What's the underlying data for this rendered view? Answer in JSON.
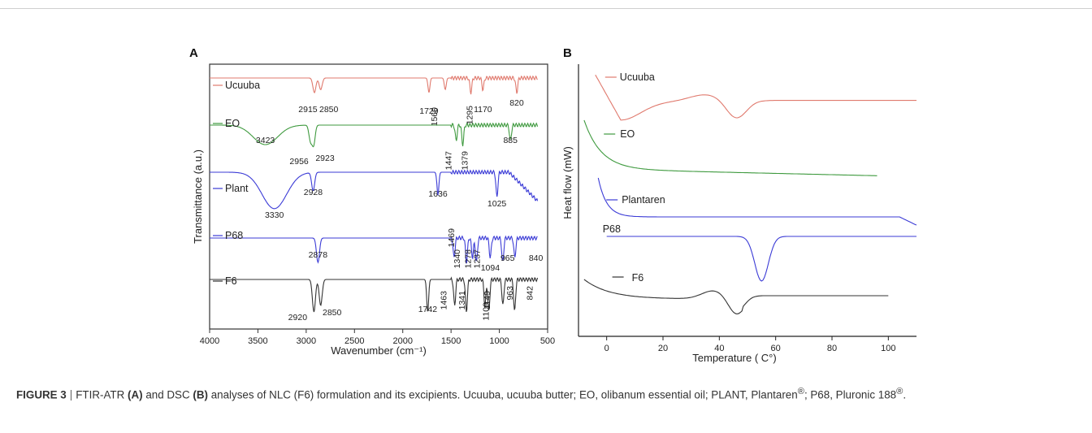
{
  "figure": {
    "panel_a_label": "A",
    "panel_b_label": "B",
    "caption": {
      "label": "FIGURE 3",
      "t1": "FTIR-ATR",
      "b1": "(A)",
      "t2": "and DSC",
      "b2": "(B)",
      "t3": "analyses of NLC (F6) formulation and its excipients. Ucuuba, ucuuba butter; EO, olibanum essential oil; PLANT, Plantaren",
      "t4": "; P68, Pluronic 188",
      "t5": ".",
      "reg": "®"
    }
  },
  "chart_data": [
    {
      "type": "line",
      "panel": "A",
      "xlabel": "Wavenumber (cm⁻¹)",
      "ylabel": "Transmittance (a.u.)",
      "xlim": [
        4000,
        500
      ],
      "x_ticks": [
        "4000",
        "3500",
        "3000",
        "2500",
        "2000",
        "1500",
        "1000",
        "500"
      ],
      "series": [
        {
          "name": "Ucuuba",
          "color": "#e07a6e",
          "peaks": [
            "2915",
            "2850",
            "1729",
            "1560",
            "1295",
            "1170",
            "820"
          ]
        },
        {
          "name": "EO",
          "color": "#3f9a3f",
          "peaks": [
            "3423",
            "2956",
            "2923",
            "1447",
            "1379",
            "885"
          ]
        },
        {
          "name": "Plant",
          "color": "#3b3bd6",
          "peaks": [
            "3330",
            "2928",
            "1636",
            "1025"
          ]
        },
        {
          "name": "P68",
          "color": "#3b3bd6",
          "peaks": [
            "2878",
            "1469",
            "1340",
            "1278",
            "1237",
            "1094",
            "965",
            "840"
          ]
        },
        {
          "name": "F6",
          "color": "#333333",
          "peaks": [
            "2920",
            "2850",
            "1742",
            "1463",
            "1341",
            "1149",
            "1109",
            "963",
            "842"
          ]
        }
      ]
    },
    {
      "type": "line",
      "panel": "B",
      "xlabel": "Temperature ( C°)",
      "ylabel": "Heat flow (mW)",
      "xlim": [
        -10,
        110
      ],
      "x_ticks": [
        "0",
        "20",
        "40",
        "60",
        "80",
        "100"
      ],
      "series": [
        {
          "name": "Ucuuba",
          "color": "#e07a6e"
        },
        {
          "name": "EO",
          "color": "#3f9a3f"
        },
        {
          "name": "Plantaren",
          "color": "#3b3bd6"
        },
        {
          "name": "P68",
          "color": "#3b3bd6"
        },
        {
          "name": "F6",
          "color": "#333333"
        }
      ]
    }
  ]
}
